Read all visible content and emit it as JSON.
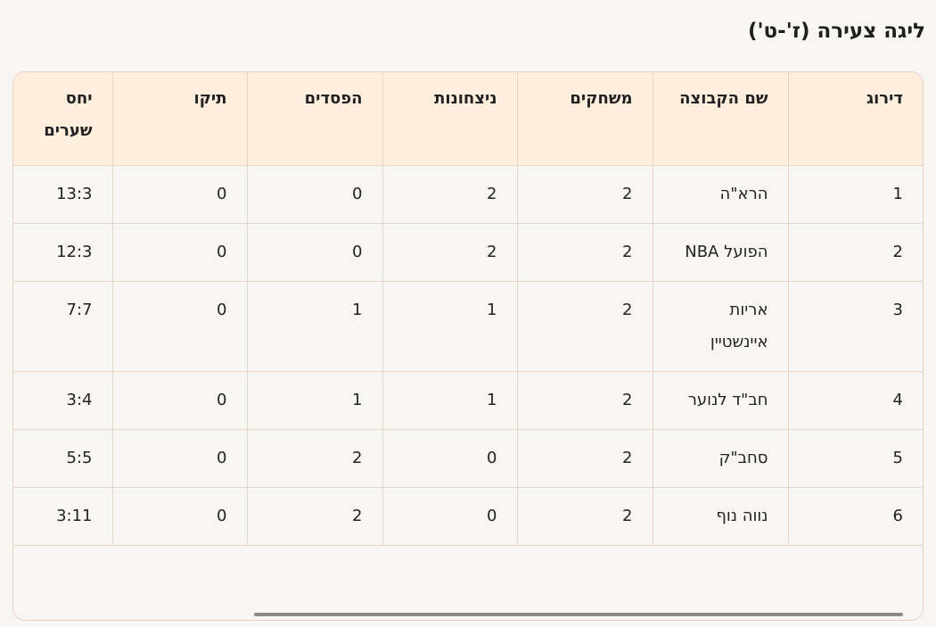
{
  "title": "ליגה צעירה (ז'-ט')",
  "columns": [
    "דירוג",
    "שם הקבוצה",
    "משחקים",
    "ניצחונות",
    "הפסדים",
    "תיקו",
    "יחס שערים"
  ],
  "rows": [
    [
      "1",
      "הרא\"ה",
      "2",
      "2",
      "0",
      "0",
      "13:3"
    ],
    [
      "2",
      "הפועל NBA",
      "2",
      "2",
      "0",
      "0",
      "12:3"
    ],
    [
      "3",
      "אריות איינשטיין",
      "2",
      "1",
      "1",
      "0",
      "7:7"
    ],
    [
      "4",
      "חב\"ד לנוער",
      "2",
      "1",
      "1",
      "0",
      "3:4"
    ],
    [
      "5",
      "סחב\"ק",
      "2",
      "0",
      "2",
      "0",
      "5:5"
    ],
    [
      "6",
      "נווה נוף",
      "2",
      "0",
      "2",
      "0",
      "3:11"
    ]
  ],
  "colors": {
    "header_bg": "#fdeede",
    "border": "#e9d6c9",
    "background": "#f8f6f3"
  }
}
